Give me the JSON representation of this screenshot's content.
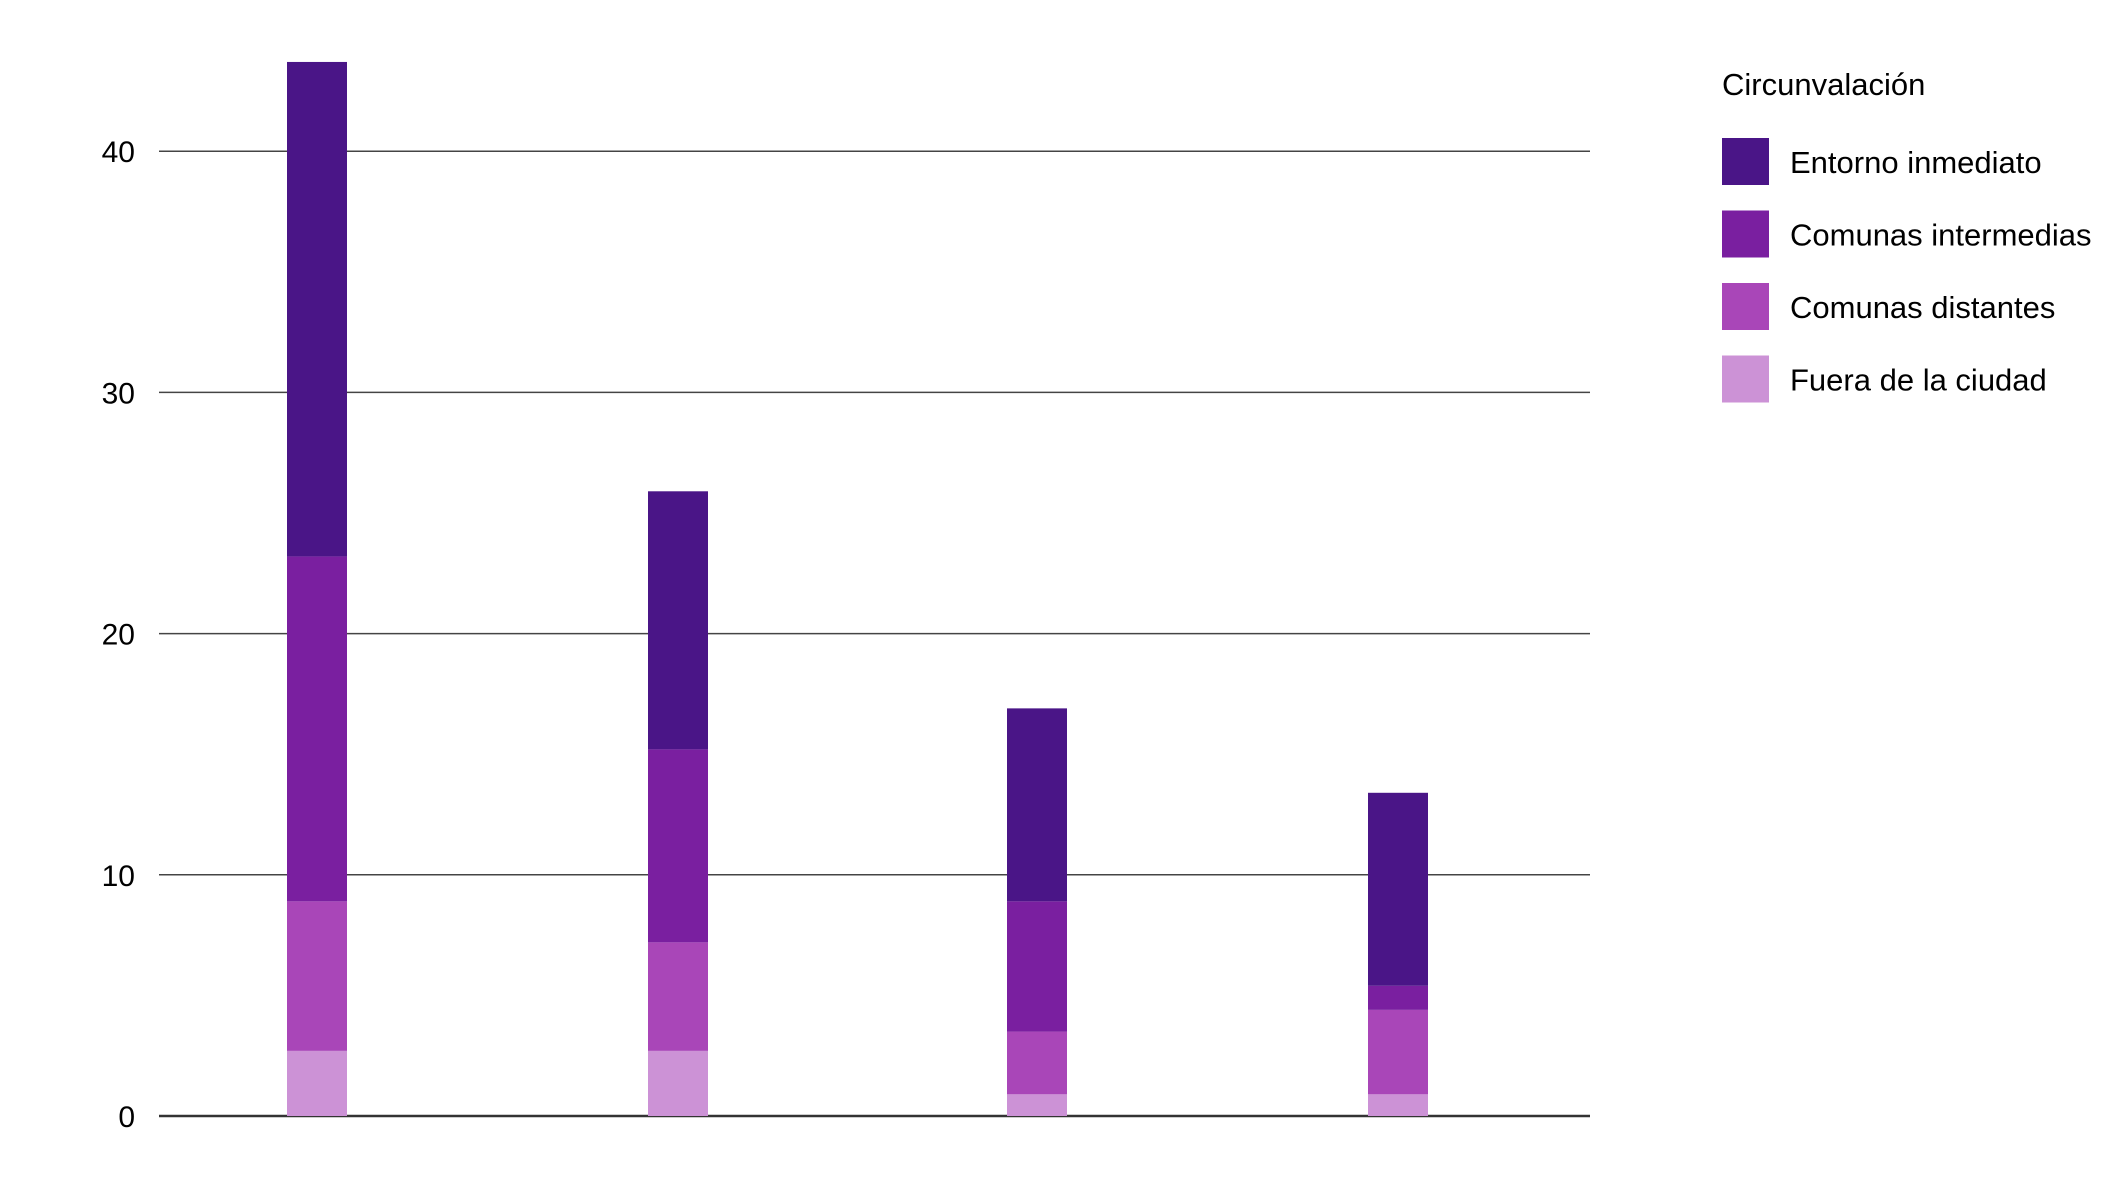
{
  "chart_data": {
    "type": "bar",
    "stacked": true,
    "categories": [
      "",
      "",
      "",
      ""
    ],
    "ylim": [
      0,
      43.7
    ],
    "yticks": [
      0,
      10,
      20,
      30,
      40
    ],
    "grid": true,
    "legend_position": "right",
    "legend_title": "Circunvalación",
    "series": [
      {
        "name": "Fuera de la ciudad",
        "color": "#cc92d6",
        "values": [
          2.7,
          2.7,
          0.9,
          0.9
        ]
      },
      {
        "name": "Comunas distantes",
        "color": "#a946b8",
        "values": [
          6.2,
          4.5,
          2.6,
          3.5
        ]
      },
      {
        "name": "Comunas intermedias",
        "color": "#7a1fa0",
        "values": [
          14.3,
          8.0,
          5.4,
          1.0
        ]
      },
      {
        "name": "Entorno inmediato",
        "color": "#4a1587",
        "values": [
          20.5,
          10.7,
          8.0,
          8.0
        ]
      }
    ]
  }
}
